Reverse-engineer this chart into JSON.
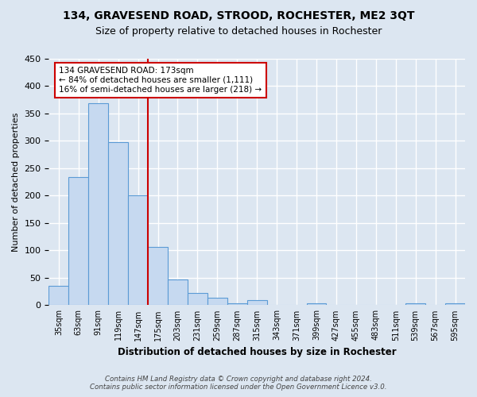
{
  "title": "134, GRAVESEND ROAD, STROOD, ROCHESTER, ME2 3QT",
  "subtitle": "Size of property relative to detached houses in Rochester",
  "xlabel": "Distribution of detached houses by size in Rochester",
  "ylabel": "Number of detached properties",
  "bar_values": [
    35,
    234,
    369,
    298,
    200,
    106,
    47,
    23,
    13,
    4,
    10,
    1,
    0,
    4,
    0,
    0,
    0,
    0,
    4,
    0,
    4
  ],
  "bin_labels": [
    "35sqm",
    "63sqm",
    "91sqm",
    "119sqm",
    "147sqm",
    "175sqm",
    "203sqm",
    "231sqm",
    "259sqm",
    "287sqm",
    "315sqm",
    "343sqm",
    "371sqm",
    "399sqm",
    "427sqm",
    "455sqm",
    "483sqm",
    "511sqm",
    "539sqm",
    "567sqm",
    "595sqm"
  ],
  "bar_color": "#c6d9f0",
  "bar_edge_color": "#5b9bd5",
  "vline_color": "#cc0000",
  "vline_pos": 4.5,
  "annotation_title": "134 GRAVESEND ROAD: 173sqm",
  "annotation_line1": "← 84% of detached houses are smaller (1,111)",
  "annotation_line2": "16% of semi-detached houses are larger (218) →",
  "annotation_box_color": "#ffffff",
  "annotation_box_edge": "#cc0000",
  "footer_line1": "Contains HM Land Registry data © Crown copyright and database right 2024.",
  "footer_line2": "Contains public sector information licensed under the Open Government Licence v3.0.",
  "ylim": [
    0,
    450
  ],
  "yticks": [
    0,
    50,
    100,
    150,
    200,
    250,
    300,
    350,
    400,
    450
  ],
  "background_color": "#dce6f1"
}
